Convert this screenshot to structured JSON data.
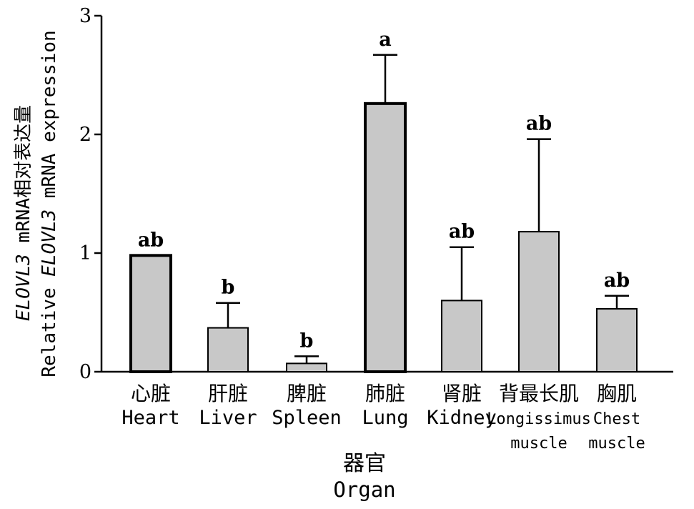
{
  "chart_data": {
    "type": "bar",
    "title": "",
    "categories": [
      {
        "cn": "心脏",
        "en": [
          "Heart"
        ]
      },
      {
        "cn": "肝脏",
        "en": [
          "Liver"
        ]
      },
      {
        "cn": "脾脏",
        "en": [
          "Spleen"
        ]
      },
      {
        "cn": "肺脏",
        "en": [
          "Lung"
        ]
      },
      {
        "cn": "肾脏",
        "en": [
          "Kidney"
        ]
      },
      {
        "cn": "背最长肌",
        "en": [
          "Longissimus",
          "muscle"
        ]
      },
      {
        "cn": "胸肌",
        "en": [
          "Chest",
          "muscle"
        ]
      }
    ],
    "values": [
      0.98,
      0.37,
      0.07,
      2.26,
      0.6,
      1.18,
      0.53
    ],
    "errors": [
      0.0,
      0.21,
      0.06,
      0.41,
      0.45,
      0.78,
      0.11
    ],
    "significance": [
      "ab",
      "b",
      "b",
      "a",
      "ab",
      "ab",
      "ab"
    ],
    "bold_outline": [
      true,
      false,
      false,
      true,
      false,
      false,
      false
    ],
    "xlabel": {
      "cn": "器官",
      "en": "Organ"
    },
    "ylabel": {
      "line1": [
        {
          "text": "ELOVL3",
          "italic": true
        },
        {
          "text": " mRNA相对表达量",
          "italic": false
        }
      ],
      "line2": [
        {
          "text": "Relative ",
          "italic": false
        },
        {
          "text": "ELOVL3",
          "italic": true
        },
        {
          "text": " mRNA expression",
          "italic": false
        }
      ]
    },
    "ylim": [
      0,
      3
    ],
    "yticks": [
      0,
      1,
      2,
      3
    ],
    "ytick_labels": [
      "0",
      "1",
      "2",
      "3"
    ],
    "bar_color": "#c8c8c8",
    "edge_color": "#000000",
    "grid": false,
    "legend": "none"
  }
}
